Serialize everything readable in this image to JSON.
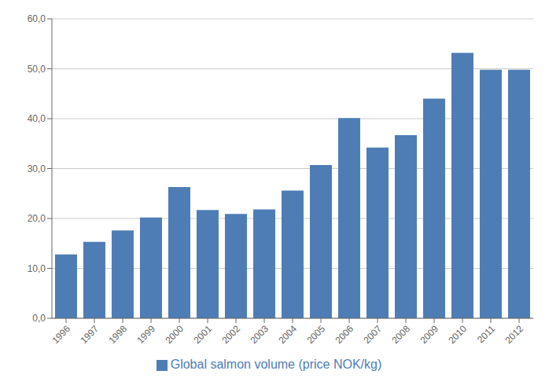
{
  "chart_data": {
    "type": "bar",
    "categories": [
      "1996",
      "1997",
      "1998",
      "1999",
      "2000",
      "2001",
      "2002",
      "2003",
      "2004",
      "2005",
      "2006",
      "2007",
      "2008",
      "2009",
      "2010",
      "2011",
      "2012"
    ],
    "series": [
      {
        "name": "Global salmon volume (price NOK/kg)",
        "color": "#4E7DB5",
        "values": [
          12.8,
          15.3,
          17.6,
          20.2,
          26.3,
          21.7,
          20.9,
          21.8,
          25.6,
          30.7,
          40.1,
          34.2,
          36.7,
          44.0,
          53.2,
          49.8,
          49.8
        ]
      }
    ],
    "ylim": [
      0,
      60
    ],
    "yticks": [
      {
        "value": 0,
        "label": "0,0"
      },
      {
        "value": 10,
        "label": "10,0"
      },
      {
        "value": 20,
        "label": "20,0"
      },
      {
        "value": 30,
        "label": "30,0"
      },
      {
        "value": 40,
        "label": "40,0"
      },
      {
        "value": 50,
        "label": "50,0"
      },
      {
        "value": 60,
        "label": "60,0"
      }
    ],
    "grid": true,
    "legend": "bottom"
  }
}
